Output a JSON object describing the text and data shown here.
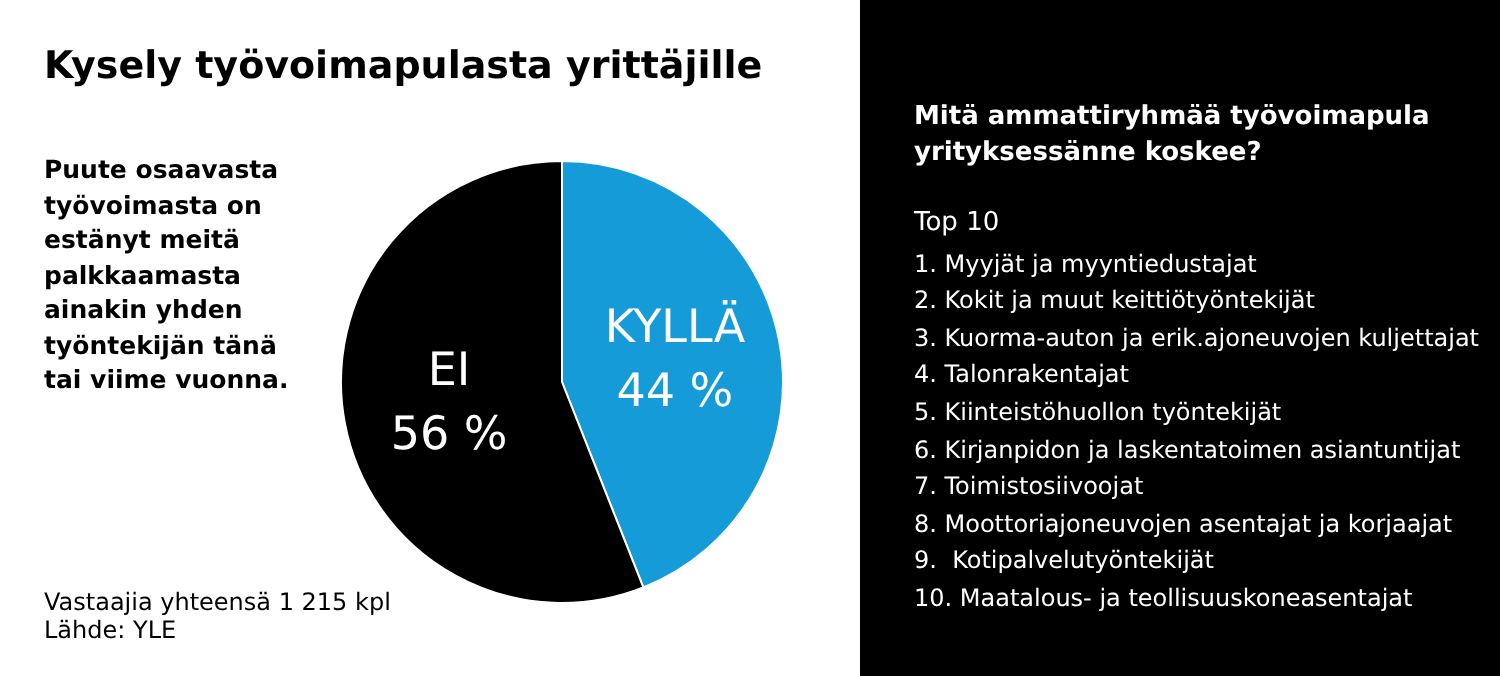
{
  "chart_data": [
    {
      "type": "pie",
      "title": "Kysely työvoimapulasta yrittäjille",
      "subtitle": "Puute osaavasta työvoimasta on estänyt meitä palkkaamasta ainakin yhden työntekijän tänä tai viime vuonna.",
      "categories": [
        "KYLLÄ",
        "EI"
      ],
      "values": [
        44,
        56
      ],
      "colors": [
        "#159bd7",
        "#000000"
      ],
      "value_labels": [
        "44 %",
        "56 %"
      ],
      "annotations": [
        "Vastaajia yhteensä 1 215 kpl",
        "Lähde: YLE"
      ]
    },
    {
      "type": "other",
      "title": "Mitä ammattiryhmää työvoimapula yrityksessänne koskee?",
      "annotations": [
        "Top 10",
        "1. Myyjät ja myyntiedustajat",
        "2. Kokit ja muut keittiötyöntekijät",
        "3. Kuorma-auton ja erik.ajoneuvojen kuljettajat",
        "4. Talonrakentajat",
        "5. Kiinteistöhuollon työntekijät",
        "6. Kirjanpidon ja laskentatoimen asiantuntijat",
        "7. Toimistosiivoojat",
        "8. Moottoriajoneuvojen asentajat ja korjaajat",
        "9.  Kotipalvelutyöntekijät",
        "10. Maatalous- ja teollisuuskoneasentajat"
      ]
    }
  ]
}
